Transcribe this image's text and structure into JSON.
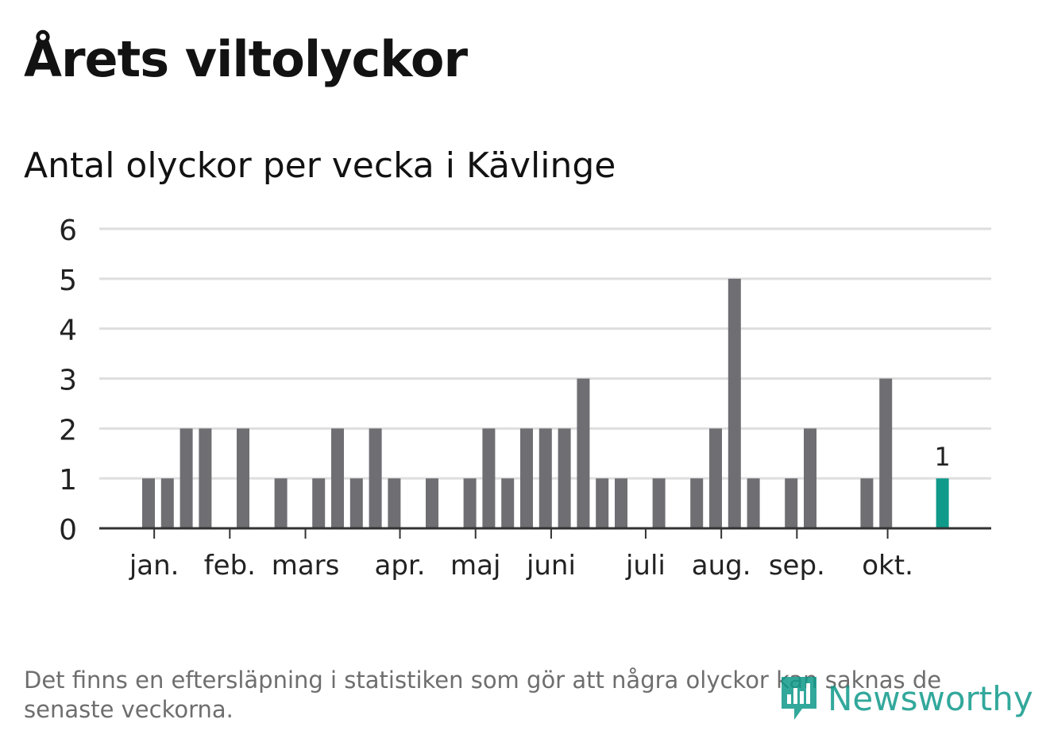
{
  "title": "Årets viltolyckor",
  "subtitle": "Antal olyckor per vecka i Kävlinge",
  "footnote": "Det finns en eftersläpning i statistiken som gör att några olyckor kan saknas de senaste veckorna.",
  "logo": {
    "text": "Newsworthy",
    "icon": "newsworthy-logo-icon"
  },
  "colors": {
    "bar": "#6f6e73",
    "highlight": "#0f9a8a",
    "grid": "#dedede",
    "axis": "#333333"
  },
  "chart_data": {
    "type": "bar",
    "title": "Antal olyckor per vecka i Kävlinge",
    "xlabel": "",
    "ylabel": "",
    "ylim": [
      0,
      6
    ],
    "yticks": [
      "0",
      "1",
      "2",
      "3",
      "4",
      "5",
      "6"
    ],
    "weeks": [
      1,
      2,
      3,
      4,
      5,
      6,
      7,
      8,
      9,
      10,
      11,
      12,
      13,
      14,
      15,
      16,
      17,
      18,
      19,
      20,
      21,
      22,
      23,
      24,
      25,
      26,
      27,
      28,
      29,
      30,
      31,
      32,
      33,
      34,
      35,
      36,
      37,
      38,
      39,
      40,
      41,
      42,
      43
    ],
    "values": [
      1,
      1,
      2,
      2,
      0,
      2,
      0,
      1,
      0,
      1,
      2,
      1,
      2,
      1,
      0,
      1,
      0,
      1,
      2,
      1,
      2,
      2,
      2,
      3,
      1,
      1,
      0,
      1,
      0,
      1,
      2,
      5,
      1,
      0,
      1,
      2,
      0,
      0,
      1,
      3,
      0,
      0,
      1
    ],
    "highlight_index": 42,
    "highlight_label": "1",
    "month_ticks": [
      {
        "label": "jan.",
        "week": 1.3
      },
      {
        "label": "feb.",
        "week": 5.3
      },
      {
        "label": "mars",
        "week": 9.3
      },
      {
        "label": "apr.",
        "week": 14.3
      },
      {
        "label": "maj",
        "week": 18.3
      },
      {
        "label": "juni",
        "week": 22.3
      },
      {
        "label": "juli",
        "week": 27.3
      },
      {
        "label": "aug.",
        "week": 31.3
      },
      {
        "label": "sep.",
        "week": 35.3
      },
      {
        "label": "okt.",
        "week": 40.1
      }
    ]
  }
}
